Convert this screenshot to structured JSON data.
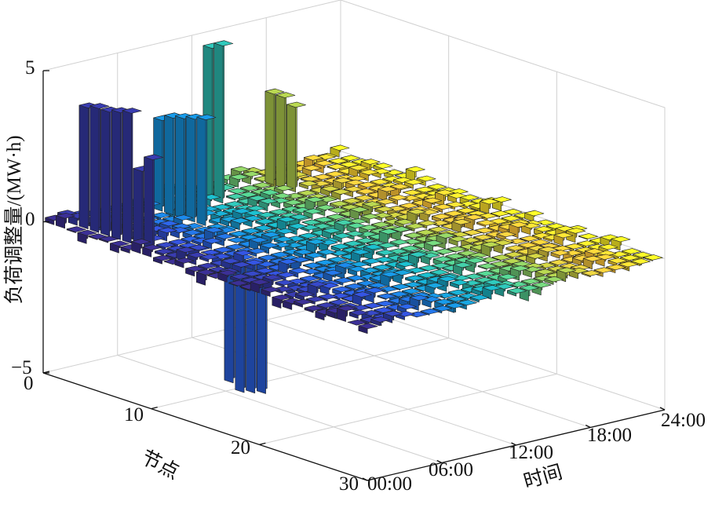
{
  "chart_data": {
    "type": "bar3d",
    "zlabel": "负荷调整量/(MW·h)",
    "xlabel": "节点",
    "ylabel": "时间",
    "zlim": [
      -5,
      5
    ],
    "ztick_labels": [
      "5",
      "0",
      "−5"
    ],
    "xtick_labels": [
      "0",
      "10",
      "20",
      "30"
    ],
    "ytick_labels": [
      "00:00",
      "06:00",
      "12:00",
      "18:00",
      "24:00"
    ],
    "grid": true,
    "colormap": "parula",
    "nodes": 30,
    "hours": 24,
    "highlighted_bars": [
      {
        "node": 2,
        "hour": 1,
        "value": 4.0
      },
      {
        "node": 3,
        "hour": 1,
        "value": 4.1
      },
      {
        "node": 4,
        "hour": 1,
        "value": 4.1
      },
      {
        "node": 5,
        "hour": 1,
        "value": 4.2
      },
      {
        "node": 6,
        "hour": 1,
        "value": 4.3
      },
      {
        "node": 7,
        "hour": 1,
        "value": 2.5
      },
      {
        "node": 8,
        "hour": 1,
        "value": 3.0
      },
      {
        "node": 12,
        "hour": 4,
        "value": -4.2
      },
      {
        "node": 13,
        "hour": 4,
        "value": -4.4
      },
      {
        "node": 14,
        "hour": 4,
        "value": -4.3
      },
      {
        "node": 15,
        "hour": 4,
        "value": -4.2
      },
      {
        "node": 2,
        "hour": 7,
        "value": 3.0
      },
      {
        "node": 3,
        "hour": 7,
        "value": 3.2
      },
      {
        "node": 4,
        "hour": 7,
        "value": 3.3
      },
      {
        "node": 5,
        "hour": 7,
        "value": 3.4
      },
      {
        "node": 6,
        "hour": 7,
        "value": 3.5
      },
      {
        "node": 2,
        "hour": 11,
        "value": 5.0
      },
      {
        "node": 3,
        "hour": 11,
        "value": 5.2
      },
      {
        "node": 2,
        "hour": 16,
        "value": 3.0
      },
      {
        "node": 3,
        "hour": 16,
        "value": 3.0
      },
      {
        "node": 4,
        "hour": 16,
        "value": 2.8
      }
    ]
  }
}
